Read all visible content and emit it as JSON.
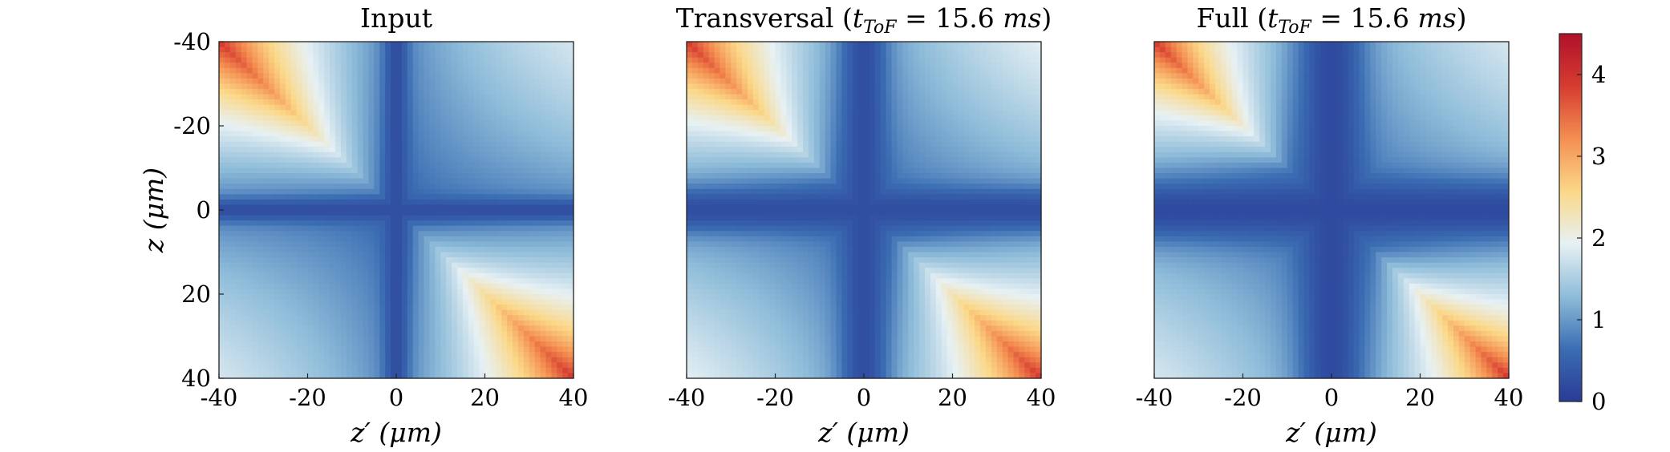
{
  "figure": {
    "panels": [
      {
        "title": "Input"
      },
      {
        "title": "Transversal (t_ToF = 15.6 ms)"
      },
      {
        "title": "Full (t_ToF = 15.6 ms)"
      }
    ],
    "ylabel": "z (μm)",
    "xlabel": "z′ (μm)"
  },
  "chart_data": [
    {
      "type": "heatmap",
      "title": "Input",
      "xlabel": "z′ (μm)",
      "ylabel": "z (μm)",
      "xlim": [
        -40,
        40
      ],
      "ylim": [
        -40,
        40
      ],
      "xticks": [
        -40,
        -20,
        0,
        20,
        40
      ],
      "yticks": [
        -40,
        -20,
        0,
        20,
        40
      ],
      "grid": false,
      "corner_peak_value": 3.9,
      "off_diagonal_corner_value": 1.8,
      "axis_line_value": 0.25,
      "peak_decay_length_um": 16,
      "gap_width_um": 2,
      "cross_halfwidth_um": 1.8
    },
    {
      "type": "heatmap",
      "title": "Transversal (t_ToF = 15.6 ms)",
      "xlabel": "z′ (μm)",
      "ylim": [
        -40,
        40
      ],
      "xlim": [
        -40,
        40
      ],
      "xticks": [
        -40,
        -20,
        0,
        20,
        40
      ],
      "grid": false,
      "corner_peak_value": 3.9,
      "off_diagonal_corner_value": 1.9,
      "axis_line_value": 0.25,
      "peak_decay_length_um": 15,
      "gap_width_um": 6,
      "cross_halfwidth_um": 3.5
    },
    {
      "type": "heatmap",
      "title": "Full (t_ToF = 15.6 ms)",
      "xlabel": "z′ (μm)",
      "ylim": [
        -40,
        40
      ],
      "xlim": [
        -40,
        40
      ],
      "xticks": [
        -40,
        -20,
        0,
        20,
        40
      ],
      "grid": false,
      "corner_peak_value": 3.9,
      "off_diagonal_corner_value": 1.8,
      "axis_line_value": 0.2,
      "peak_decay_length_um": 14,
      "gap_width_um": 9,
      "cross_halfwidth_um": 5
    }
  ],
  "colorbar": {
    "min": 0,
    "max": 4.5,
    "ticks": [
      0,
      1,
      2,
      3,
      4
    ],
    "colormap": [
      "#2a3b96",
      "#3b6db3",
      "#8ebcd9",
      "#e7f1f4",
      "#fbd888",
      "#f48f51",
      "#d63c30",
      "#b0112b"
    ]
  }
}
